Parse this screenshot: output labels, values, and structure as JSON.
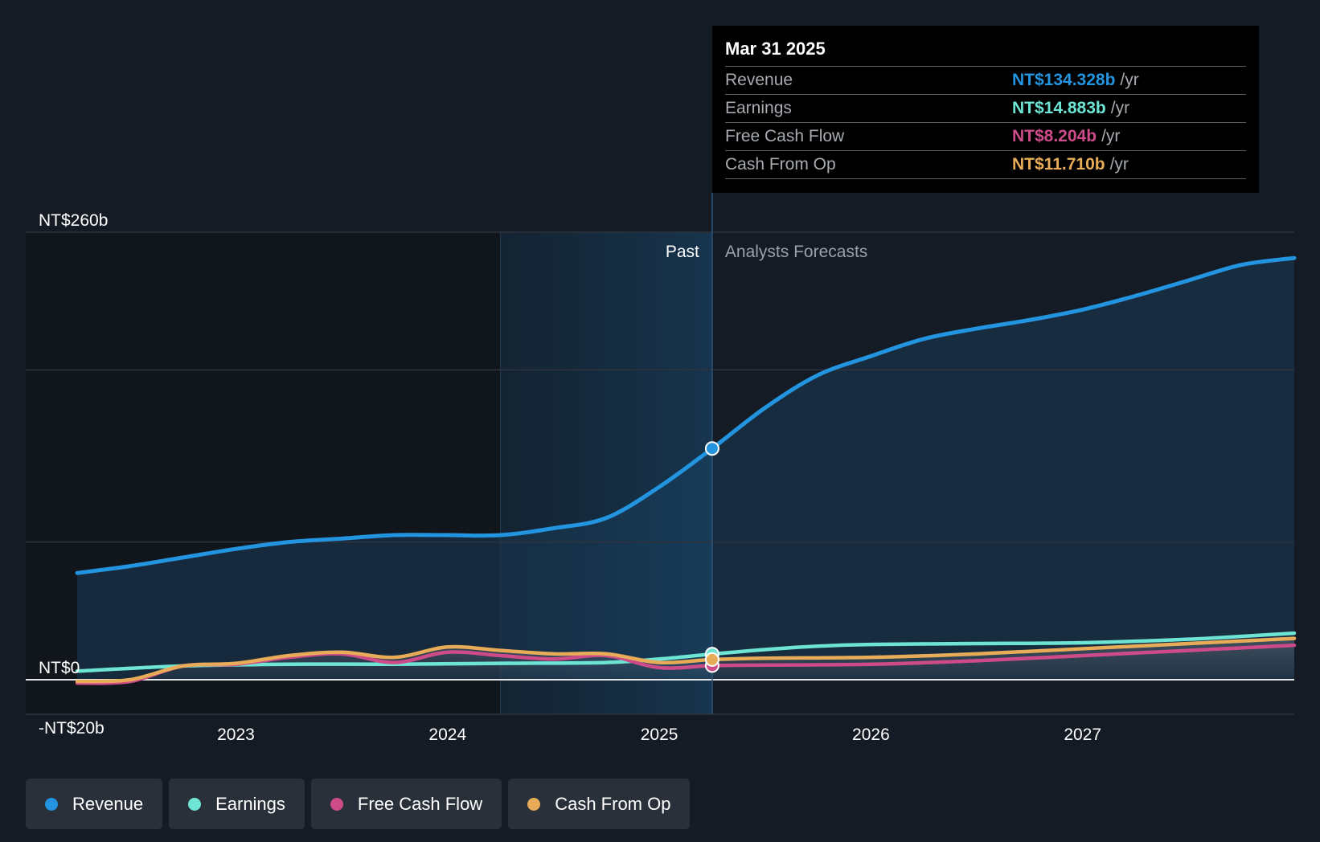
{
  "chart_data": {
    "type": "line",
    "y_axis_labels": [
      "NT$260b",
      "NT$0",
      "-NT$20b"
    ],
    "ylim": [
      -20,
      260
    ],
    "x_ticks": [
      "2023",
      "2024",
      "2025",
      "2026",
      "2027"
    ],
    "region_labels": {
      "past": "Past",
      "forecast": "Analysts Forecasts"
    },
    "legend_placement": "bottom",
    "series": [
      {
        "name": "Revenue",
        "color": "#2394df",
        "points": [
          [
            2022.25,
            62
          ],
          [
            2022.5,
            66
          ],
          [
            2022.75,
            71
          ],
          [
            2023.0,
            76
          ],
          [
            2023.25,
            80
          ],
          [
            2023.5,
            82
          ],
          [
            2023.75,
            84
          ],
          [
            2024.0,
            84
          ],
          [
            2024.25,
            84
          ],
          [
            2024.5,
            88
          ],
          [
            2024.75,
            94
          ],
          [
            2025.0,
            112
          ],
          [
            2025.25,
            134.328
          ],
          [
            2025.5,
            158
          ],
          [
            2025.75,
            177
          ],
          [
            2026.0,
            188
          ],
          [
            2026.25,
            198
          ],
          [
            2026.5,
            204
          ],
          [
            2026.75,
            209
          ],
          [
            2027.0,
            215
          ],
          [
            2027.25,
            223
          ],
          [
            2027.5,
            232
          ],
          [
            2027.75,
            241
          ],
          [
            2028.0,
            245
          ]
        ]
      },
      {
        "name": "Earnings",
        "color": "#6ee5d4",
        "points": [
          [
            2022.25,
            5
          ],
          [
            2022.75,
            8
          ],
          [
            2023.25,
            9
          ],
          [
            2023.75,
            9
          ],
          [
            2024.25,
            9.5
          ],
          [
            2024.75,
            10
          ],
          [
            2025.0,
            12
          ],
          [
            2025.25,
            14.883
          ],
          [
            2025.5,
            17.5
          ],
          [
            2025.75,
            19.5
          ],
          [
            2026.0,
            20.5
          ],
          [
            2026.5,
            21
          ],
          [
            2027.0,
            21.5
          ],
          [
            2027.5,
            23.5
          ],
          [
            2028.0,
            27
          ]
        ]
      },
      {
        "name": "Free Cash Flow",
        "color": "#cc4b88",
        "points": [
          [
            2022.25,
            -2
          ],
          [
            2022.5,
            -1
          ],
          [
            2022.75,
            8
          ],
          [
            2023.0,
            9
          ],
          [
            2023.25,
            13
          ],
          [
            2023.5,
            15
          ],
          [
            2023.75,
            10
          ],
          [
            2024.0,
            16
          ],
          [
            2024.25,
            14
          ],
          [
            2024.5,
            12
          ],
          [
            2024.75,
            14
          ],
          [
            2025.0,
            7
          ],
          [
            2025.25,
            8.204
          ],
          [
            2025.5,
            8.5
          ],
          [
            2026.0,
            9
          ],
          [
            2026.5,
            11
          ],
          [
            2027.0,
            14
          ],
          [
            2027.5,
            17
          ],
          [
            2028.0,
            20
          ]
        ]
      },
      {
        "name": "Cash From Op",
        "color": "#e8ac58",
        "points": [
          [
            2022.25,
            -1
          ],
          [
            2022.5,
            0
          ],
          [
            2022.75,
            8
          ],
          [
            2023.0,
            9.5
          ],
          [
            2023.25,
            14
          ],
          [
            2023.5,
            16
          ],
          [
            2023.75,
            13
          ],
          [
            2024.0,
            19
          ],
          [
            2024.25,
            17
          ],
          [
            2024.5,
            15
          ],
          [
            2024.75,
            15
          ],
          [
            2025.0,
            10
          ],
          [
            2025.25,
            11.71
          ],
          [
            2025.5,
            12.5
          ],
          [
            2026.0,
            13
          ],
          [
            2026.5,
            15
          ],
          [
            2027.0,
            18
          ],
          [
            2027.5,
            21
          ],
          [
            2028.0,
            24
          ]
        ]
      }
    ]
  },
  "tooltip": {
    "date": "Mar 31 2025",
    "rows": [
      {
        "label": "Revenue",
        "value": "NT$134.328b",
        "unit": "/yr",
        "color": "#2394df"
      },
      {
        "label": "Earnings",
        "value": "NT$14.883b",
        "unit": "/yr",
        "color": "#6ee5d4"
      },
      {
        "label": "Free Cash Flow",
        "value": "NT$8.204b",
        "unit": "/yr",
        "color": "#cc4b88"
      },
      {
        "label": "Cash From Op",
        "value": "NT$11.710b",
        "unit": "/yr",
        "color": "#e8ac58"
      }
    ]
  },
  "legend": [
    {
      "label": "Revenue",
      "color": "#2394df"
    },
    {
      "label": "Earnings",
      "color": "#6ee5d4"
    },
    {
      "label": "Free Cash Flow",
      "color": "#cc4b88"
    },
    {
      "label": "Cash From Op",
      "color": "#e8ac58"
    }
  ]
}
